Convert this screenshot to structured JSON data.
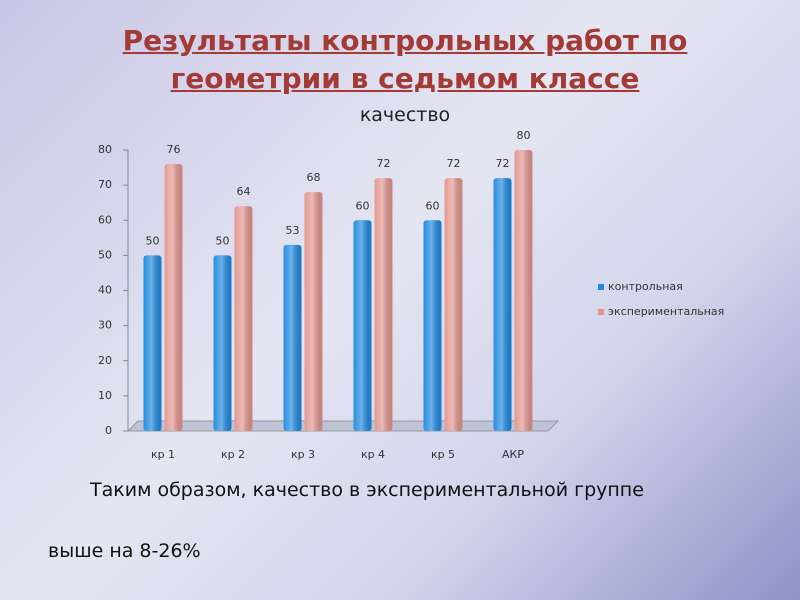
{
  "chart_data": {
    "type": "bar",
    "title": "Результаты контрольных работ по геометрии в седьмом классе",
    "subtitle": "качество",
    "categories": [
      "кр 1",
      "кр 2",
      "кр 3",
      "кр 4",
      "кр 5",
      "АКР"
    ],
    "series": [
      {
        "name": "контрольная",
        "color": "#1e88e0",
        "values": [
          50,
          50,
          53,
          60,
          60,
          72
        ]
      },
      {
        "name": "экспериментальная",
        "color": "#e2958e",
        "values": [
          76,
          64,
          68,
          72,
          72,
          80
        ]
      }
    ],
    "ylim": [
      0,
      80
    ],
    "yticks": [
      0,
      10,
      20,
      30,
      40,
      50,
      60,
      70,
      80
    ],
    "grid": false,
    "legend": "right"
  },
  "notes": [
    "Таким образом, качество в экспериментальной группе",
    "выше на 8-26%"
  ]
}
